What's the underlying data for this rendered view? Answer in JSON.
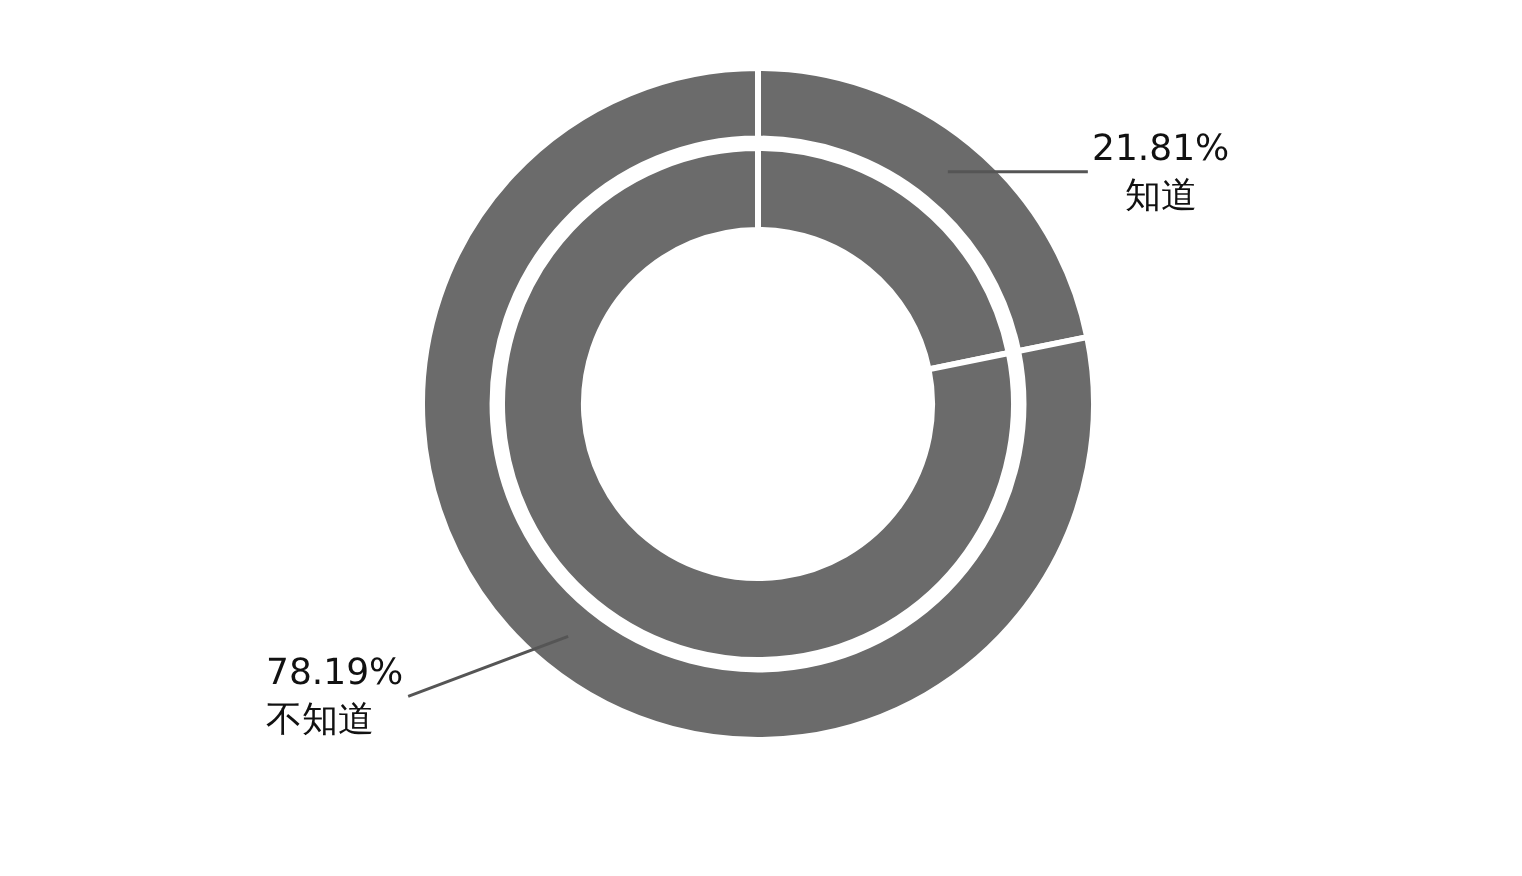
{
  "chart_data": {
    "type": "donut",
    "categories": [
      "知道",
      "不知道"
    ],
    "series": [
      {
        "values": [
          21.81,
          78.19
        ],
        "colors": [
          "#6b6b6b",
          "#6b6b6b"
        ],
        "value_labels": [
          "21.81%",
          "78.19%"
        ]
      },
      {
        "values": [
          21.81,
          78.19
        ],
        "colors": [
          "#6b6b6b",
          "#6b6b6b"
        ]
      }
    ],
    "legend": false
  }
}
